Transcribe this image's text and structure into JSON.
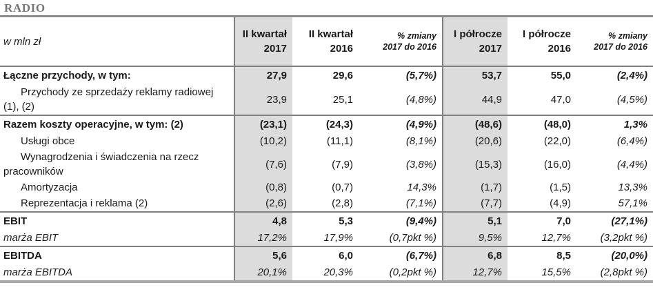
{
  "title": "RADIO",
  "colors": {
    "shaded_column_bg": "#dcdcdc",
    "grid_line": "#7f7f7f",
    "thick_rule": "#a8a8a8",
    "title_text": "#767676",
    "body_text": "#1a1a1a"
  },
  "header": {
    "unit_label": "w mln zł",
    "columns": [
      {
        "line1": "II kwartał",
        "line2": "2017"
      },
      {
        "line1": "II kwartał",
        "line2": "2016"
      },
      {
        "line1": "% zmiany",
        "line2": "2017 do 2016"
      },
      {
        "line1": "I półrocze",
        "line2": "2017"
      },
      {
        "line1": "I półrocze",
        "line2": "2016"
      },
      {
        "line1": "% zmiany",
        "line2": "2017 do 2016"
      }
    ]
  },
  "rows": [
    {
      "label": "Łączne przychody, w tym:",
      "style": "section",
      "border_top": false,
      "values": [
        "27,9",
        "29,6",
        "(5,7%)",
        "53,7",
        "55,0",
        "(2,4%)"
      ]
    },
    {
      "label": "Przychody ze sprzedaży reklamy radiowej (1), (2)",
      "style": "sub",
      "border_top": false,
      "values": [
        "23,9",
        "25,1",
        "(4,8%)",
        "44,9",
        "47,0",
        "(4,5%)"
      ]
    },
    {
      "label": "Razem koszty operacyjne, w tym: (2)",
      "style": "section",
      "border_top": true,
      "values": [
        "(23,1)",
        "(24,3)",
        "(4,9%)",
        "(48,6)",
        "(48,0)",
        "1,3%"
      ]
    },
    {
      "label": "Usługi obce",
      "style": "sub",
      "border_top": false,
      "values": [
        "(10,2)",
        "(11,1)",
        "(8,1%)",
        "(20,6)",
        "(22,0)",
        "(6,4%)"
      ]
    },
    {
      "label": "Wynagrodzenia i świadczenia na rzecz pracowników",
      "style": "sub",
      "border_top": false,
      "values": [
        "(7,6)",
        "(7,9)",
        "(3,8%)",
        "(15,3)",
        "(16,0)",
        "(4,4%)"
      ]
    },
    {
      "label": "Amortyzacja",
      "style": "sub",
      "border_top": false,
      "values": [
        "(0,8)",
        "(0,7)",
        "14,3%",
        "(1,7)",
        "(1,5)",
        "13,3%"
      ]
    },
    {
      "label": "Reprezentacja i reklama (2)",
      "style": "sub",
      "border_top": false,
      "values": [
        "(2,6)",
        "(2,8)",
        "(7,1%)",
        "(7,7)",
        "(4,9)",
        "57,1%"
      ]
    },
    {
      "label": "EBIT",
      "style": "section",
      "border_top": true,
      "values": [
        "4,8",
        "5,3",
        "(9,4%)",
        "5,1",
        "7,0",
        "(27,1%)"
      ]
    },
    {
      "label": "marża EBIT",
      "style": "italic",
      "border_top": false,
      "values": [
        "17,2%",
        "17,9%",
        "(0,7pkt %)",
        "9,5%",
        "12,7%",
        "(3,2pkt %)"
      ]
    },
    {
      "label": "EBITDA",
      "style": "section",
      "border_top": true,
      "values": [
        "5,6",
        "6,0",
        "(6,7%)",
        "6,8",
        "8,5",
        "(20,0%)"
      ]
    },
    {
      "label": "marża EBITDA",
      "style": "italic",
      "border_top": false,
      "values": [
        "20,1%",
        "20,3%",
        "(0,2pkt %)",
        "12,7%",
        "15,5%",
        "(2,8pkt %)"
      ]
    }
  ]
}
